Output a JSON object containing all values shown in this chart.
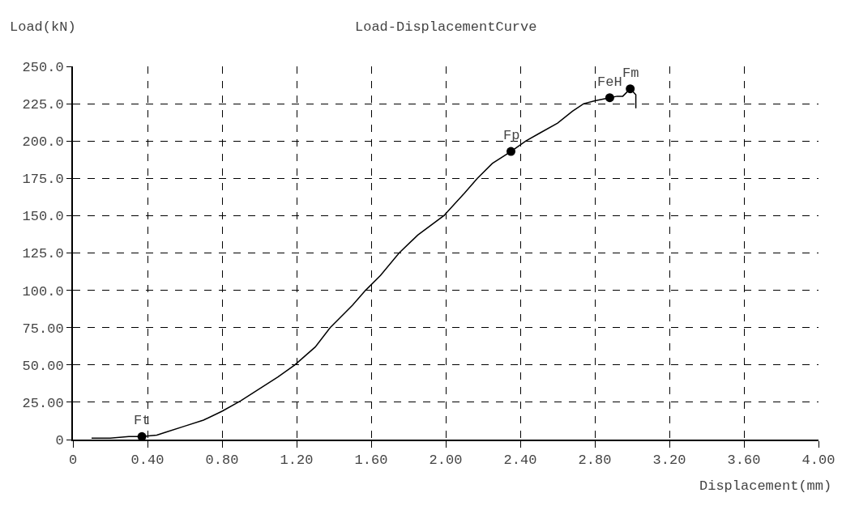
{
  "chart_data": {
    "type": "line",
    "title": "Load-DisplacementCurve",
    "xlabel": "Displacement(mm)",
    "ylabel": "Load(kN)",
    "series": [
      {
        "color": "#000000",
        "marker": "none",
        "x": [
          0.1,
          0.2,
          0.3,
          0.37,
          0.45,
          0.5,
          0.6,
          0.7,
          0.8,
          0.9,
          1.0,
          1.1,
          1.19,
          1.3,
          1.38,
          1.5,
          1.57,
          1.65,
          1.75,
          1.85,
          1.99,
          2.1,
          2.17,
          2.25,
          2.35,
          2.43,
          2.5,
          2.6,
          2.68,
          2.74,
          2.8,
          2.88,
          2.92,
          2.95,
          2.99,
          3.02,
          3.02
        ],
        "values": [
          1,
          1,
          2,
          2,
          3,
          5,
          9,
          13,
          19,
          26,
          34,
          42,
          50,
          62,
          75,
          90,
          100,
          110,
          125,
          137,
          150,
          165,
          175,
          185,
          193,
          200,
          205,
          212,
          220,
          225,
          227,
          229,
          230,
          230,
          235,
          231,
          222
        ]
      },
      {
        "type": "scatter",
        "color": "#000000",
        "marker": "circle",
        "x": [
          0.37,
          2.35,
          2.88,
          2.99
        ],
        "values": [
          2,
          193,
          229,
          235
        ]
      }
    ],
    "annotations": [
      {
        "text": "Ft",
        "x": 0.37,
        "y": 2
      },
      {
        "text": "Fp",
        "x": 2.35,
        "y": 193
      },
      {
        "text": "FeH",
        "x": 2.88,
        "y": 229
      },
      {
        "text": "Fm",
        "x": 2.99,
        "y": 235
      }
    ],
    "xlim": [
      0,
      4
    ],
    "ylim": [
      0,
      250
    ],
    "xticks": [
      0,
      {
        "value": 0.4,
        "label": "0.40"
      },
      {
        "value": 0.8,
        "label": "0.80"
      },
      {
        "value": 1.2,
        "label": "1.20"
      },
      {
        "value": 1.6,
        "label": "1.60"
      },
      {
        "value": 2,
        "label": "2.00"
      },
      {
        "value": 2.4,
        "label": "2.40"
      },
      {
        "value": 2.8,
        "label": "2.80"
      },
      {
        "value": 3.2,
        "label": "3.20"
      },
      {
        "value": 3.6,
        "label": "3.60"
      },
      {
        "value": 4,
        "label": "4.00"
      }
    ],
    "yticks": [
      0,
      {
        "value": 25,
        "label": "25.00"
      },
      {
        "value": 50,
        "label": "50.00"
      },
      {
        "value": 75,
        "label": "75.00"
      },
      {
        "value": 100,
        "label": "100.0"
      },
      {
        "value": 125,
        "label": "125.0"
      },
      {
        "value": 150,
        "label": "150.0"
      },
      {
        "value": 175,
        "label": "175.0"
      },
      {
        "value": 200,
        "label": "200.0"
      },
      {
        "value": 225,
        "label": "225.0"
      },
      {
        "value": 250,
        "label": "250.0"
      }
    ],
    "grid": true,
    "legend": false
  }
}
